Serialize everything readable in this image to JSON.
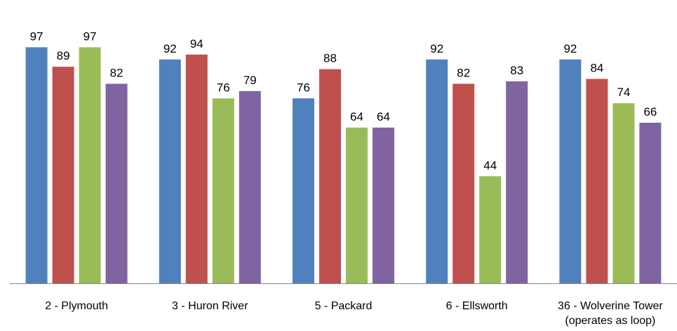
{
  "chart_data": {
    "type": "bar",
    "title": "",
    "xlabel": "",
    "ylabel": "",
    "ylim": [
      0,
      100
    ],
    "grid": false,
    "legend": "none",
    "categories": [
      "2 - Plymouth",
      "3 - Huron River",
      "5 - Packard",
      "6 - Ellsworth",
      [
        "36 - Wolverine Tower",
        "(operates as loop)"
      ]
    ],
    "series": [
      {
        "color": "#4F81BD",
        "values": [
          97,
          92,
          76,
          92,
          92
        ]
      },
      {
        "color": "#C0504D",
        "values": [
          89,
          94,
          88,
          82,
          84
        ]
      },
      {
        "color": "#9BBB59",
        "values": [
          97,
          76,
          64,
          44,
          74
        ]
      },
      {
        "color": "#8064A2",
        "values": [
          82,
          79,
          64,
          83,
          66
        ]
      }
    ]
  }
}
